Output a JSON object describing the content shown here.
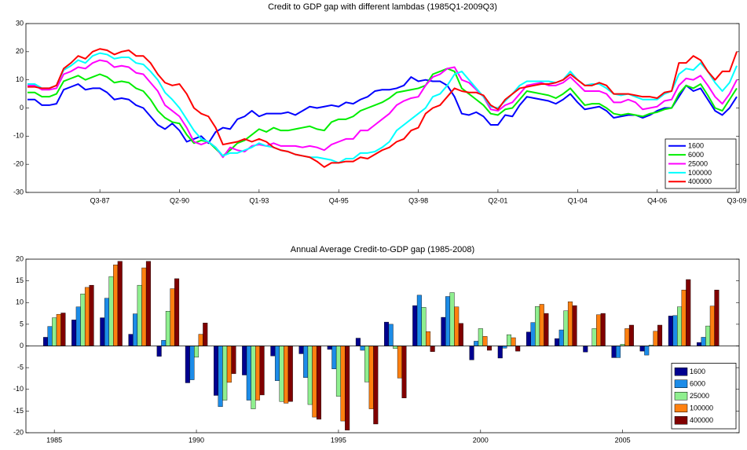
{
  "chart_data": [
    {
      "type": "line",
      "title": "Credit to GDP gap with different lambdas (1985Q1-2009Q3)",
      "categories": [
        null,
        null,
        null,
        null,
        null,
        null,
        null,
        null,
        null,
        null,
        "Q3-87",
        null,
        null,
        null,
        null,
        null,
        null,
        null,
        null,
        null,
        null,
        "Q2-90",
        null,
        null,
        null,
        null,
        null,
        null,
        null,
        null,
        null,
        null,
        "Q1-93",
        null,
        null,
        null,
        null,
        null,
        null,
        null,
        null,
        null,
        null,
        "Q4-95",
        null,
        null,
        null,
        null,
        null,
        null,
        null,
        null,
        null,
        null,
        "Q3-98",
        null,
        null,
        null,
        null,
        null,
        null,
        null,
        null,
        null,
        null,
        "Q2-01",
        null,
        null,
        null,
        null,
        null,
        null,
        null,
        null,
        null,
        null,
        "Q1-04",
        null,
        null,
        null,
        null,
        null,
        null,
        null,
        null,
        null,
        null,
        "Q4-06",
        null,
        null,
        null,
        null,
        null,
        null,
        null,
        null,
        null,
        null,
        "Q3-09"
      ],
      "series": [
        {
          "name": "1600",
          "color": "#0000ff",
          "values": [
            3,
            3,
            1,
            1,
            1.5,
            6.5,
            7.5,
            8.5,
            6.5,
            7,
            7,
            5.5,
            3,
            3.5,
            3,
            1,
            0,
            -3,
            -6,
            -7.5,
            -5.5,
            -8,
            -12,
            -11,
            -10,
            -12.5,
            -8.5,
            -7,
            -7.5,
            -4,
            -3,
            -1,
            -3,
            -2,
            -2,
            -2,
            -1.5,
            -2.5,
            -1,
            0.5,
            0,
            0.5,
            1,
            0.5,
            2,
            1.5,
            3,
            4,
            6,
            6.5,
            6.5,
            7,
            8,
            11,
            9.5,
            10,
            9.5,
            9.5,
            8,
            4,
            -2,
            -2.5,
            -1.5,
            -3,
            -6,
            -6,
            -2.5,
            -3,
            1,
            4,
            3.5,
            3,
            2.5,
            1.5,
            3,
            5,
            2,
            -0.5,
            0,
            0.5,
            -1,
            -3.5,
            -3,
            -2.5,
            -2.5,
            -3.5,
            -2.5,
            -1,
            0,
            0,
            4,
            8,
            6,
            7,
            3,
            -1,
            -2.5,
            0,
            4
          ]
        },
        {
          "name": "6000",
          "color": "#00ee00",
          "values": [
            5.5,
            5.5,
            4,
            4,
            5,
            9.5,
            10.5,
            11.5,
            10,
            11,
            12,
            11,
            9,
            9.5,
            9,
            7,
            6,
            3,
            -1,
            -3.5,
            -5,
            -5.5,
            -9.5,
            -12.5,
            -11.5,
            -12,
            -14.5,
            -17,
            -15,
            -12.5,
            -11.5,
            -9.5,
            -7.5,
            -8.5,
            -7,
            -8,
            -8,
            -7.5,
            -7,
            -6.5,
            -7.5,
            -8,
            -5,
            -4,
            -4,
            -3,
            -1,
            0,
            1,
            2,
            3.5,
            5.5,
            6,
            6.5,
            7,
            8,
            12,
            13,
            14,
            13,
            7,
            5,
            3,
            1,
            -2,
            -2.5,
            -0.5,
            0,
            3,
            6,
            5.5,
            5,
            4.5,
            3.5,
            5,
            7,
            4,
            1,
            1.5,
            1.5,
            0,
            -2,
            -2.5,
            -2,
            -2.5,
            -3,
            -2,
            -1.5,
            -0.5,
            0,
            5,
            8,
            7,
            8.5,
            4.5,
            0,
            -1,
            3,
            7
          ]
        },
        {
          "name": "25000",
          "color": "#ff00ff",
          "values": [
            8,
            8,
            6.5,
            6.5,
            7,
            12,
            13,
            14.5,
            14,
            16,
            17,
            16.5,
            14.5,
            15,
            14.5,
            12.5,
            12,
            9,
            6,
            1,
            -1,
            -3,
            -7,
            -12,
            -13,
            -12,
            -14,
            -17.5,
            -14,
            -15,
            -15.5,
            -13.5,
            -13,
            -13.5,
            -12.5,
            -13.5,
            -13.5,
            -13.5,
            -14,
            -13.5,
            -14,
            -15,
            -13,
            -12,
            -11,
            -11,
            -8,
            -8,
            -6,
            -4,
            -2,
            1,
            2.5,
            3.5,
            4,
            8,
            11,
            12,
            14,
            14.5,
            10,
            9,
            6.5,
            4,
            -0.5,
            -1,
            1,
            2,
            5,
            8,
            8.5,
            9,
            8,
            8,
            9,
            11,
            8.5,
            6,
            6,
            6,
            5,
            2,
            2,
            3,
            2,
            -0.5,
            0,
            0.5,
            2.5,
            3,
            8,
            10.5,
            10,
            11.5,
            8,
            4,
            1.5,
            5,
            10
          ]
        },
        {
          "name": "100000",
          "color": "#00ffff",
          "values": [
            8.5,
            8.5,
            7,
            7,
            8,
            13.5,
            15,
            17,
            16,
            18.5,
            19.5,
            19,
            17.5,
            18,
            18,
            16,
            15.5,
            13,
            10,
            5.5,
            3,
            0,
            -4,
            -8,
            -11,
            -12,
            -14,
            -17,
            -16,
            -16,
            -15,
            -14,
            -12.5,
            -13.5,
            -14,
            -15,
            -15.5,
            -16.5,
            -17,
            -17.5,
            -17.5,
            -18,
            -18.5,
            -19.5,
            -18,
            -18,
            -16,
            -16,
            -15.5,
            -14,
            -12,
            -8,
            -6,
            -4,
            -2,
            0,
            4,
            5,
            8,
            12,
            13,
            10,
            7,
            4,
            0.5,
            0,
            2.5,
            5,
            8,
            9.5,
            9.5,
            9.5,
            9.5,
            9,
            10,
            13,
            10,
            8,
            8.5,
            8.5,
            7,
            5,
            4.5,
            5,
            4,
            3,
            3,
            3,
            5,
            6,
            12,
            14,
            13.5,
            16,
            13,
            9,
            6,
            9,
            15
          ]
        },
        {
          "name": "400000",
          "color": "#ff0000",
          "values": [
            7.5,
            7.5,
            7,
            7,
            8,
            14,
            16,
            18.5,
            17.5,
            20,
            21,
            20.5,
            19,
            20,
            20.5,
            18.5,
            18.5,
            16,
            12,
            9,
            8,
            8.5,
            5,
            0,
            -2,
            -3,
            -7,
            -13,
            -12.5,
            -12,
            -11,
            -12,
            -11,
            -12,
            -14,
            -15,
            -15.5,
            -16.5,
            -17,
            -17.5,
            -19,
            -21,
            -19.5,
            -19.5,
            -19,
            -19,
            -17.5,
            -18,
            -16.5,
            -15,
            -14,
            -12,
            -11,
            -8,
            -7,
            -2,
            0,
            1,
            4,
            7,
            6,
            5.5,
            5.5,
            4.5,
            1,
            -0.5,
            3,
            5,
            7,
            7.5,
            8,
            8.5,
            8.5,
            9,
            10,
            12,
            10,
            8,
            8,
            9,
            8,
            5,
            5,
            5,
            4.5,
            4,
            4,
            3.5,
            5.5,
            6,
            16,
            16,
            18.5,
            17,
            13,
            10,
            13,
            13,
            20
          ]
        }
      ],
      "ylim": [
        -30,
        30
      ],
      "yticks": [
        -30,
        -20,
        -10,
        0,
        10,
        20,
        30
      ],
      "legend": "lower right"
    },
    {
      "type": "bar",
      "title": "Annual Average Credit-to-GDP gap (1985-2008)",
      "categories": [
        "1985",
        null,
        null,
        null,
        null,
        "1990",
        null,
        null,
        null,
        null,
        "1995",
        null,
        null,
        null,
        null,
        "2000",
        null,
        null,
        null,
        null,
        "2005",
        null,
        null,
        null
      ],
      "series": [
        {
          "name": "1600",
          "color": "#00008f",
          "values": [
            2,
            6,
            6.5,
            2.7,
            -2.4,
            -8.5,
            -11.4,
            -6.7,
            -2.3,
            -1.8,
            -0.8,
            1.8,
            5.5,
            9.3,
            6.6,
            -3.2,
            -2.8,
            3.2,
            1.7,
            -1.4,
            -2.7,
            -1.2,
            6.9,
            0.8
          ]
        },
        {
          "name": "6000",
          "color": "#1c8ce8",
          "values": [
            4.5,
            9,
            11,
            7.4,
            1.3,
            -7.8,
            -14,
            -12.5,
            -8,
            -7.3,
            -5.3,
            -1,
            5,
            11.7,
            11.4,
            1.1,
            -0.5,
            5.4,
            3.7,
            0,
            -2.7,
            -2.1,
            7,
            2
          ]
        },
        {
          "name": "25000",
          "color": "#8fef8f",
          "values": [
            6.5,
            12,
            16,
            14,
            8,
            -2.6,
            -12.5,
            -14.5,
            -12.8,
            -13.5,
            -11.6,
            -8.3,
            -0.6,
            8.9,
            12.3,
            4,
            2.6,
            9.1,
            8.1,
            4,
            0.4,
            0.2,
            9,
            4.6
          ]
        },
        {
          "name": "100000",
          "color": "#ff8010",
          "values": [
            7.3,
            13.5,
            18.7,
            18,
            13.2,
            2.7,
            -8.4,
            -12.5,
            -13.2,
            -16.4,
            -17.3,
            -14.5,
            -7.4,
            3.3,
            9,
            2.2,
            1.9,
            9.6,
            10.2,
            7.2,
            4,
            3.4,
            12.9,
            9.2
          ]
        },
        {
          "name": "400000",
          "color": "#800000",
          "values": [
            7.6,
            14,
            19.5,
            19.5,
            15.5,
            5.3,
            -6.4,
            -11.3,
            -12.8,
            -16.9,
            -19.4,
            -18,
            -12,
            -1.3,
            5.2,
            -1,
            -1.2,
            7.5,
            9.3,
            7.5,
            4.8,
            4.8,
            15.3,
            12.9
          ]
        }
      ],
      "ylim": [
        -20,
        20
      ],
      "yticks": [
        -20,
        -15,
        -10,
        -5,
        0,
        5,
        10,
        15,
        20
      ],
      "legend": "lower right"
    }
  ]
}
